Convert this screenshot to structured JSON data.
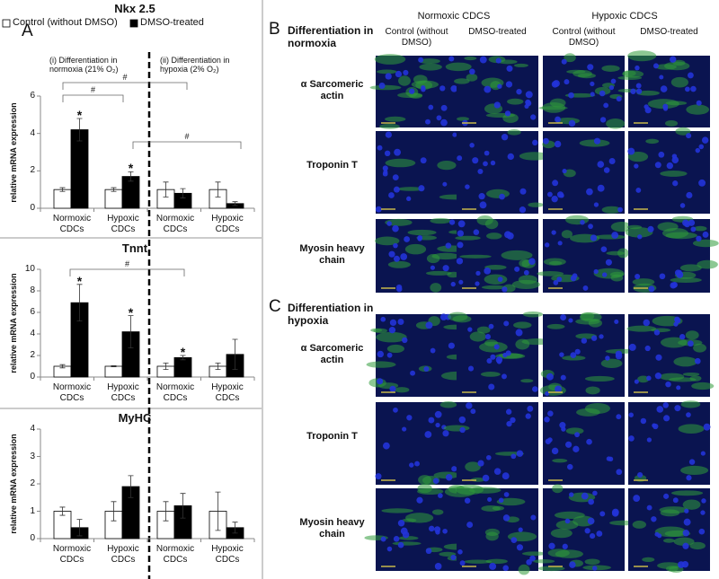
{
  "chart_data": [
    {
      "type": "bar",
      "panel": "A",
      "title": "Nkx 2.5",
      "y_label": "relative mRNA expression",
      "group_labels": [
        "(i) Differentiation in normoxia (21% O₂)",
        "(ii) Differentiation in hypoxia (2% O₂)"
      ],
      "categories": [
        "Normoxic CDCs",
        "Hypoxic CDCs",
        "Normoxic CDCs",
        "Hypoxic CDCs"
      ],
      "series": [
        {
          "name": "Control (without DMSO)",
          "color": "#ffffff",
          "values": [
            1.0,
            1.0,
            1.0,
            1.0
          ],
          "errors": [
            0.1,
            0.1,
            0.4,
            0.4
          ]
        },
        {
          "name": "DMSO-treated",
          "color": "#000000",
          "values": [
            4.2,
            1.7,
            0.8,
            0.25
          ],
          "errors": [
            0.6,
            0.25,
            0.25,
            0.1
          ]
        }
      ],
      "markers": [
        "*",
        "*",
        null,
        null
      ],
      "brackets": [
        "#",
        "#",
        "#"
      ],
      "ylim": [
        0,
        6
      ],
      "yticks": [
        0,
        2,
        4,
        6
      ]
    },
    {
      "type": "bar",
      "title": "Tnnt",
      "y_label": "relative mRNA expression",
      "categories": [
        "Normoxic CDCs",
        "Hypoxic CDCs",
        "Normoxic CDCs",
        "Hypoxic CDCs"
      ],
      "series": [
        {
          "color": "#ffffff",
          "values": [
            1.0,
            1.0,
            1.0,
            1.0
          ],
          "errors": [
            0.15,
            0.05,
            0.3,
            0.3
          ]
        },
        {
          "color": "#000000",
          "values": [
            6.9,
            4.2,
            1.8,
            2.1
          ],
          "errors": [
            1.7,
            1.5,
            0.2,
            1.4
          ]
        }
      ],
      "markers": [
        "*",
        "*",
        "*",
        null
      ],
      "brackets": [
        "#"
      ],
      "ylim": [
        0,
        10
      ],
      "yticks": [
        0,
        2,
        4,
        6,
        8,
        10
      ]
    },
    {
      "type": "bar",
      "title": "MyHC",
      "y_label": "relative mRNA expression",
      "categories": [
        "Normoxic CDCs",
        "Hypoxic CDCs",
        "Normoxic CDCs",
        "Hypoxic CDCs"
      ],
      "series": [
        {
          "color": "#ffffff",
          "values": [
            1.0,
            1.0,
            1.0,
            1.0
          ],
          "errors": [
            0.15,
            0.35,
            0.35,
            0.7
          ]
        },
        {
          "color": "#000000",
          "values": [
            0.4,
            1.9,
            1.2,
            0.4
          ],
          "errors": [
            0.3,
            0.4,
            0.45,
            0.2
          ]
        }
      ],
      "ylim": [
        0,
        4
      ],
      "yticks": [
        0,
        1,
        2,
        3,
        4
      ]
    }
  ],
  "images": {
    "columns_top": [
      "Normoxic CDCS",
      "Hypoxic CDCS"
    ],
    "columns": [
      "Control (without DMSO)",
      "DMSO-treated",
      "Control (without DMSO)",
      "DMSO-treated"
    ],
    "sections": [
      {
        "label": "B",
        "title": "Differentiation in normoxia",
        "rows": [
          "α Sarcomeric actin",
          "Troponin T",
          "Myosin heavy chain"
        ]
      },
      {
        "label": "C",
        "title": "Differentiation in hypoxia",
        "rows": [
          "α Sarcomeric actin",
          "Troponin T",
          "Myosin heavy chain"
        ]
      }
    ]
  }
}
